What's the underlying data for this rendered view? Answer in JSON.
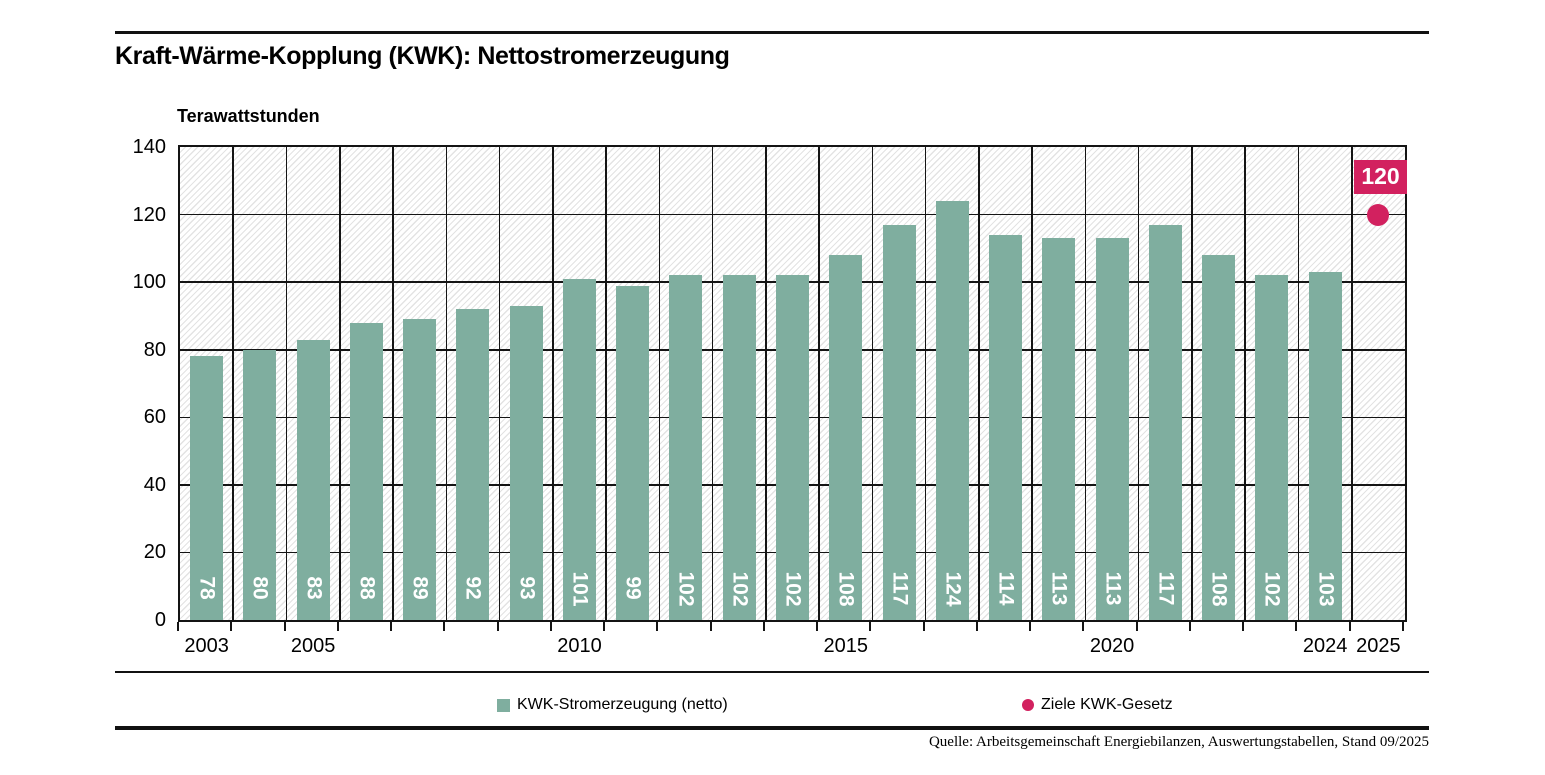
{
  "chart_data": {
    "type": "bar",
    "title": "Kraft-Wärme-Kopplung (KWK): Nettostromerzeugung",
    "unit_label": "Terawattstunden",
    "categories": [
      "2003",
      "2004",
      "2005",
      "2006",
      "2007",
      "2008",
      "2009",
      "2010",
      "2011",
      "2012",
      "2013",
      "2014",
      "2015",
      "2016",
      "2017",
      "2018",
      "2019",
      "2020",
      "2021",
      "2022",
      "2023",
      "2024"
    ],
    "series": [
      {
        "name": "KWK-Stromerzeugung (netto)",
        "values": [
          78,
          80,
          83,
          88,
          89,
          92,
          93,
          101,
          99,
          102,
          102,
          102,
          108,
          117,
          124,
          114,
          113,
          113,
          117,
          108,
          102,
          103
        ],
        "color": "#7fae9f"
      }
    ],
    "target_point": {
      "name": "Ziele KWK-Gesetz",
      "x": "2025",
      "value": 120,
      "label": "120",
      "color": "#d2215f"
    },
    "ylim": [
      0,
      140
    ],
    "ytick_step": 20,
    "xtick_labels": [
      "2003",
      "2005",
      "2010",
      "2015",
      "2020",
      "2024",
      "2025"
    ],
    "grid": true,
    "legend_position": "bottom",
    "legend": [
      {
        "label": "KWK-Stromerzeugung (netto)",
        "marker": "square",
        "color": "#7fae9f"
      },
      {
        "label": "Ziele KWK-Gesetz",
        "marker": "circle",
        "color": "#d2215f"
      }
    ]
  },
  "colors": {
    "bar": "#7fae9f",
    "target": "#d2215f",
    "grid": "#141414"
  },
  "footer": {
    "source": "Quelle: Arbeitsgemeinschaft Energiebilanzen, Auswertungstabellen, Stand 09/2025"
  }
}
